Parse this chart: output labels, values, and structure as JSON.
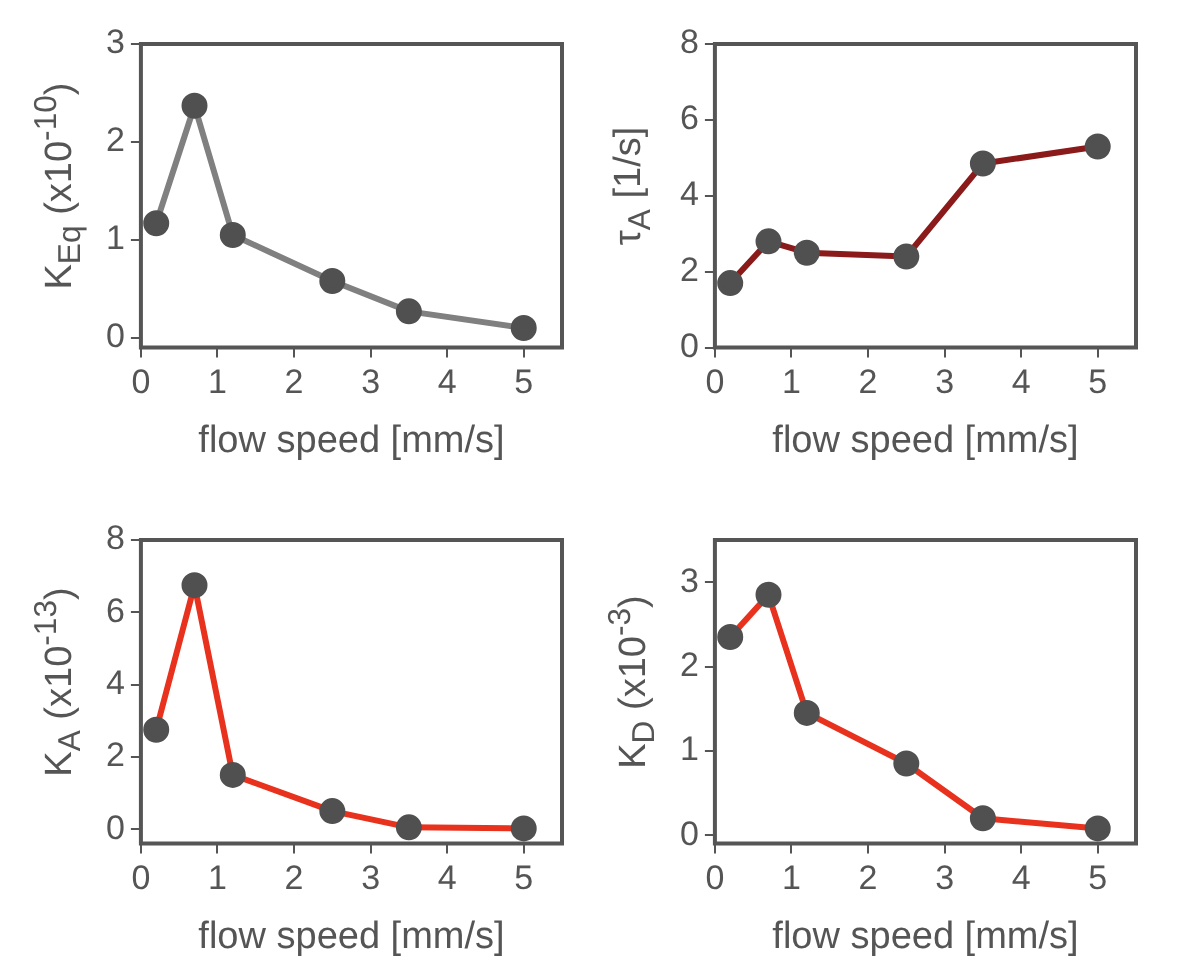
{
  "chart_data": [
    {
      "type": "line",
      "xlabel": "flow speed [mm/s]",
      "ylabel": "K$_{Eq}$ (x10$^{-10}$)",
      "x": [
        0.2,
        0.7,
        1.2,
        2.5,
        3.5,
        5
      ],
      "series": [
        {
          "color": "#808080",
          "values": [
            1.17,
            2.37,
            1.05,
            0.58,
            0.27,
            0.1
          ]
        }
      ],
      "xlim": [
        0,
        5.5
      ],
      "xticks": [
        0,
        1,
        2,
        3,
        4,
        5
      ],
      "ylim": [
        -0.1,
        3
      ],
      "yticks": [
        0,
        1,
        2,
        3
      ],
      "marker": "circle",
      "grid": false,
      "legend": false
    },
    {
      "type": "line",
      "xlabel": "flow speed [mm/s]",
      "ylabel": "τ$_{A}$ [1/s]",
      "x": [
        0.2,
        0.7,
        1.2,
        2.5,
        3.5,
        5
      ],
      "series": [
        {
          "color": "#8b1a1a",
          "values": [
            1.7,
            2.8,
            2.5,
            2.4,
            4.85,
            5.3
          ]
        }
      ],
      "xlim": [
        0,
        5.5
      ],
      "xticks": [
        0,
        1,
        2,
        3,
        4,
        5
      ],
      "ylim": [
        0,
        8
      ],
      "yticks": [
        0,
        2,
        4,
        6,
        8
      ],
      "marker": "circle",
      "grid": false,
      "legend": false
    },
    {
      "type": "line",
      "xlabel": "flow speed [mm/s]",
      "ylabel": "K$_{A}$ (x10$^{-13}$)",
      "x": [
        0.2,
        0.7,
        1.2,
        2.5,
        3.5,
        5
      ],
      "series": [
        {
          "color": "#e8321e",
          "values": [
            2.75,
            6.75,
            1.5,
            0.5,
            0.05,
            0.02
          ]
        }
      ],
      "xlim": [
        0,
        5.5
      ],
      "xticks": [
        0,
        1,
        2,
        3,
        4,
        5
      ],
      "ylim": [
        -0.4,
        8
      ],
      "yticks": [
        0,
        2,
        4,
        6,
        8
      ],
      "marker": "circle",
      "grid": false,
      "legend": false
    },
    {
      "type": "line",
      "xlabel": "flow speed [mm/s]",
      "ylabel": "K$_{D}$ (x10$^{-3}$)",
      "x": [
        0.2,
        0.7,
        1.2,
        2.5,
        3.5,
        5
      ],
      "series": [
        {
          "color": "#e8321e",
          "values": [
            2.35,
            2.85,
            1.45,
            0.85,
            0.2,
            0.08
          ]
        }
      ],
      "xlim": [
        0,
        5.5
      ],
      "xticks": [
        0,
        1,
        2,
        3,
        4,
        5
      ],
      "ylim": [
        -0.1,
        3.5
      ],
      "yticks": [
        0,
        1,
        2,
        3
      ],
      "marker": "circle",
      "grid": false,
      "legend": false
    }
  ]
}
